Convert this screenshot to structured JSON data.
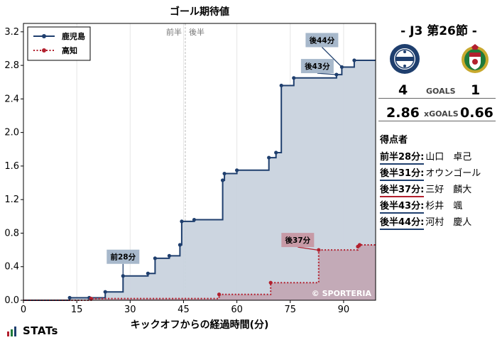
{
  "chart_data": {
    "type": "line",
    "title": "ゴール期待値",
    "xlabel": "キックオフからの経過時間(分)",
    "ylabel": "",
    "xlim": [
      0,
      99
    ],
    "ylim": [
      0,
      3.3
    ],
    "x_ticks": [
      0,
      15,
      30,
      45,
      60,
      75,
      90
    ],
    "y_ticks": [
      0.0,
      0.4,
      0.8,
      1.2,
      1.6,
      2.0,
      2.4,
      2.8,
      3.2
    ],
    "y_tick_labels": [
      "0.0",
      "0.4",
      "0.8",
      "1.2",
      "1.6",
      "2.0",
      "2.4",
      "2.8",
      "3.2"
    ],
    "half_marker": {
      "x": 45.5,
      "left_label": "前半",
      "right_label": "後半"
    },
    "legend_position": "top-left",
    "grid": "vertical",
    "watermark": "© SPORTERIA",
    "series": [
      {
        "name": "鹿児島",
        "color": "#1f3f6e",
        "fill": "#c9d3de",
        "line_style": "solid",
        "x": [
          0,
          13,
          18.5,
          23,
          28,
          35,
          37,
          41,
          44,
          44.5,
          48,
          56,
          56.5,
          60,
          69,
          71,
          72.5,
          76,
          88,
          89.5,
          93,
          99
        ],
        "y": [
          0,
          0.03,
          0.03,
          0.1,
          0.29,
          0.32,
          0.5,
          0.53,
          0.66,
          0.94,
          0.96,
          1.43,
          1.51,
          1.55,
          1.7,
          1.76,
          2.56,
          2.65,
          2.69,
          2.78,
          2.86,
          2.86
        ]
      },
      {
        "name": "高知",
        "color": "#b2202e",
        "fill": "#c2a8b4",
        "line_style": "dotted",
        "x": [
          0,
          19,
          55,
          69.5,
          83,
          94,
          94.5,
          99
        ],
        "y": [
          0,
          0.02,
          0.07,
          0.21,
          0.6,
          0.64,
          0.66,
          0.66
        ]
      }
    ],
    "annotations": [
      {
        "text": "前28分",
        "x": 28,
        "y": 0.29,
        "team": "home"
      },
      {
        "text": "後37分",
        "x": 82.5,
        "y": 0.6,
        "team": "away"
      },
      {
        "text": "後43分",
        "x": 88,
        "y": 2.69,
        "team": "home"
      },
      {
        "text": "後44分",
        "x": 89.5,
        "y": 2.78,
        "team": "home"
      }
    ]
  },
  "match": {
    "title": "- J3 第26節 -",
    "home_goals": "4",
    "away_goals": "1",
    "goals_label": "GOALS",
    "home_xg": "2.86",
    "away_xg": "0.66",
    "xg_label": "xGOALS"
  },
  "scorers": {
    "title": "得点者",
    "items": [
      {
        "time": "前半28分:",
        "player": "山口　卓己",
        "team": "home"
      },
      {
        "time": "後半31分:",
        "player": "オウンゴール",
        "team": "home"
      },
      {
        "time": "後半37分:",
        "player": "三好　麟大",
        "team": "away"
      },
      {
        "time": "後半43分:",
        "player": "杉井　颯",
        "team": "home"
      },
      {
        "time": "後半44分:",
        "player": "河村　慶人",
        "team": "home"
      }
    ]
  },
  "brand": "STATs",
  "colors": {
    "home": "#1f3f6e",
    "away": "#b2202e",
    "home_fill": "#c9d3de",
    "away_fill": "#c2a8b4"
  }
}
